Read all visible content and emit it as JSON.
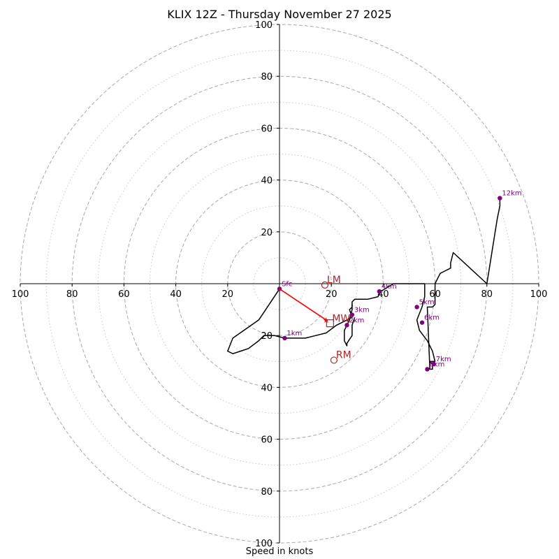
{
  "title": "KLIX 12Z - Thursday November 27 2025",
  "xlabel": "Speed in knots",
  "colors": {
    "hodograph": "#000000",
    "height_marker": "#800080",
    "storm_motion": "#b22222",
    "mean_wind_vector": "#ff0000",
    "ring_major": "#b0b0b0",
    "ring_minor": "#c8c8c8"
  },
  "chart_data": {
    "type": "line",
    "title": "KLIX 12Z - Thursday November 27 2025",
    "xlabel": "Speed in knots",
    "ylabel": "",
    "xlim": [
      -100,
      100
    ],
    "ylim": [
      -100,
      100
    ],
    "units": "knots",
    "rings_major": [
      20,
      40,
      60,
      80,
      100
    ],
    "rings_minor": [
      10,
      30,
      50,
      70,
      90
    ],
    "x_tick_labels": [
      "100",
      "80",
      "60",
      "40",
      "20",
      "20",
      "40",
      "60",
      "80",
      "100"
    ],
    "x_tick_values": [
      -100,
      -80,
      -60,
      -40,
      -20,
      20,
      40,
      60,
      80,
      100
    ],
    "y_tick_labels": [
      "100",
      "80",
      "60",
      "40",
      "20",
      "20",
      "40",
      "60",
      "80",
      "100"
    ],
    "y_tick_values": [
      100,
      80,
      60,
      40,
      20,
      -20,
      -40,
      -60,
      -80,
      -100
    ],
    "series": [
      {
        "x": [
          0,
          -4,
          -8,
          -18,
          -20,
          -18,
          -15,
          -12,
          -8,
          -6,
          -2,
          2,
          4,
          10,
          14,
          18,
          22,
          26,
          28,
          27,
          28,
          28,
          29,
          31,
          34,
          38,
          39,
          44,
          50,
          56,
          56,
          55,
          53,
          54,
          57,
          59,
          60,
          59,
          58,
          59,
          59,
          59,
          58,
          57,
          59,
          60,
          60,
          62,
          66,
          66,
          67,
          80,
          84,
          85,
          85
        ],
        "y": [
          -2,
          -8,
          -14,
          -21,
          -26,
          -27,
          -26,
          -25,
          -22,
          -20,
          -20,
          -21,
          -21,
          -21,
          -20,
          -19,
          -16,
          -14,
          -13,
          -10,
          -9,
          -7,
          -6,
          -6,
          -6,
          -5,
          -3,
          0,
          0,
          0,
          -5,
          -9,
          -14,
          -18,
          -22,
          -26,
          -30,
          -30,
          -30,
          -31,
          -32,
          -33,
          -33,
          -9,
          -9,
          -8,
          0,
          4,
          6,
          8,
          12,
          0,
          25,
          30,
          33
        ]
      },
      {
        "x": [
          28,
          28,
          27,
          26,
          25,
          25,
          25,
          26,
          26,
          28,
          28,
          29
        ],
        "y": [
          -8,
          -10,
          -14,
          -16,
          -18,
          -20,
          -22,
          -24,
          -23,
          -20,
          -16,
          -13
        ]
      }
    ],
    "height_markers": [
      {
        "label": "Sfc",
        "x": 0,
        "y": -2
      },
      {
        "label": "1km",
        "x": 2,
        "y": -21
      },
      {
        "label": "2km",
        "x": 26,
        "y": -16
      },
      {
        "label": "3km",
        "x": 28,
        "y": -12
      },
      {
        "label": "4km",
        "x": 38.5,
        "y": -3
      },
      {
        "label": "5km",
        "x": 53,
        "y": -9
      },
      {
        "label": "6km",
        "x": 55,
        "y": -15
      },
      {
        "label": "7km",
        "x": 59.5,
        "y": -31
      },
      {
        "label": "8km",
        "x": 57,
        "y": -33
      },
      {
        "label": "12km",
        "x": 85,
        "y": 33
      }
    ],
    "storm_motion": {
      "LM": {
        "label": "LM",
        "x": 17.5,
        "y": -0.5
      },
      "RM": {
        "label": "RM",
        "x": 21,
        "y": -29.5
      },
      "MW": {
        "label": "MW",
        "x": 19.5,
        "y": -15
      }
    },
    "mean_wind_vector": {
      "from": [
        0,
        -2
      ],
      "to": [
        18,
        -14
      ]
    }
  }
}
